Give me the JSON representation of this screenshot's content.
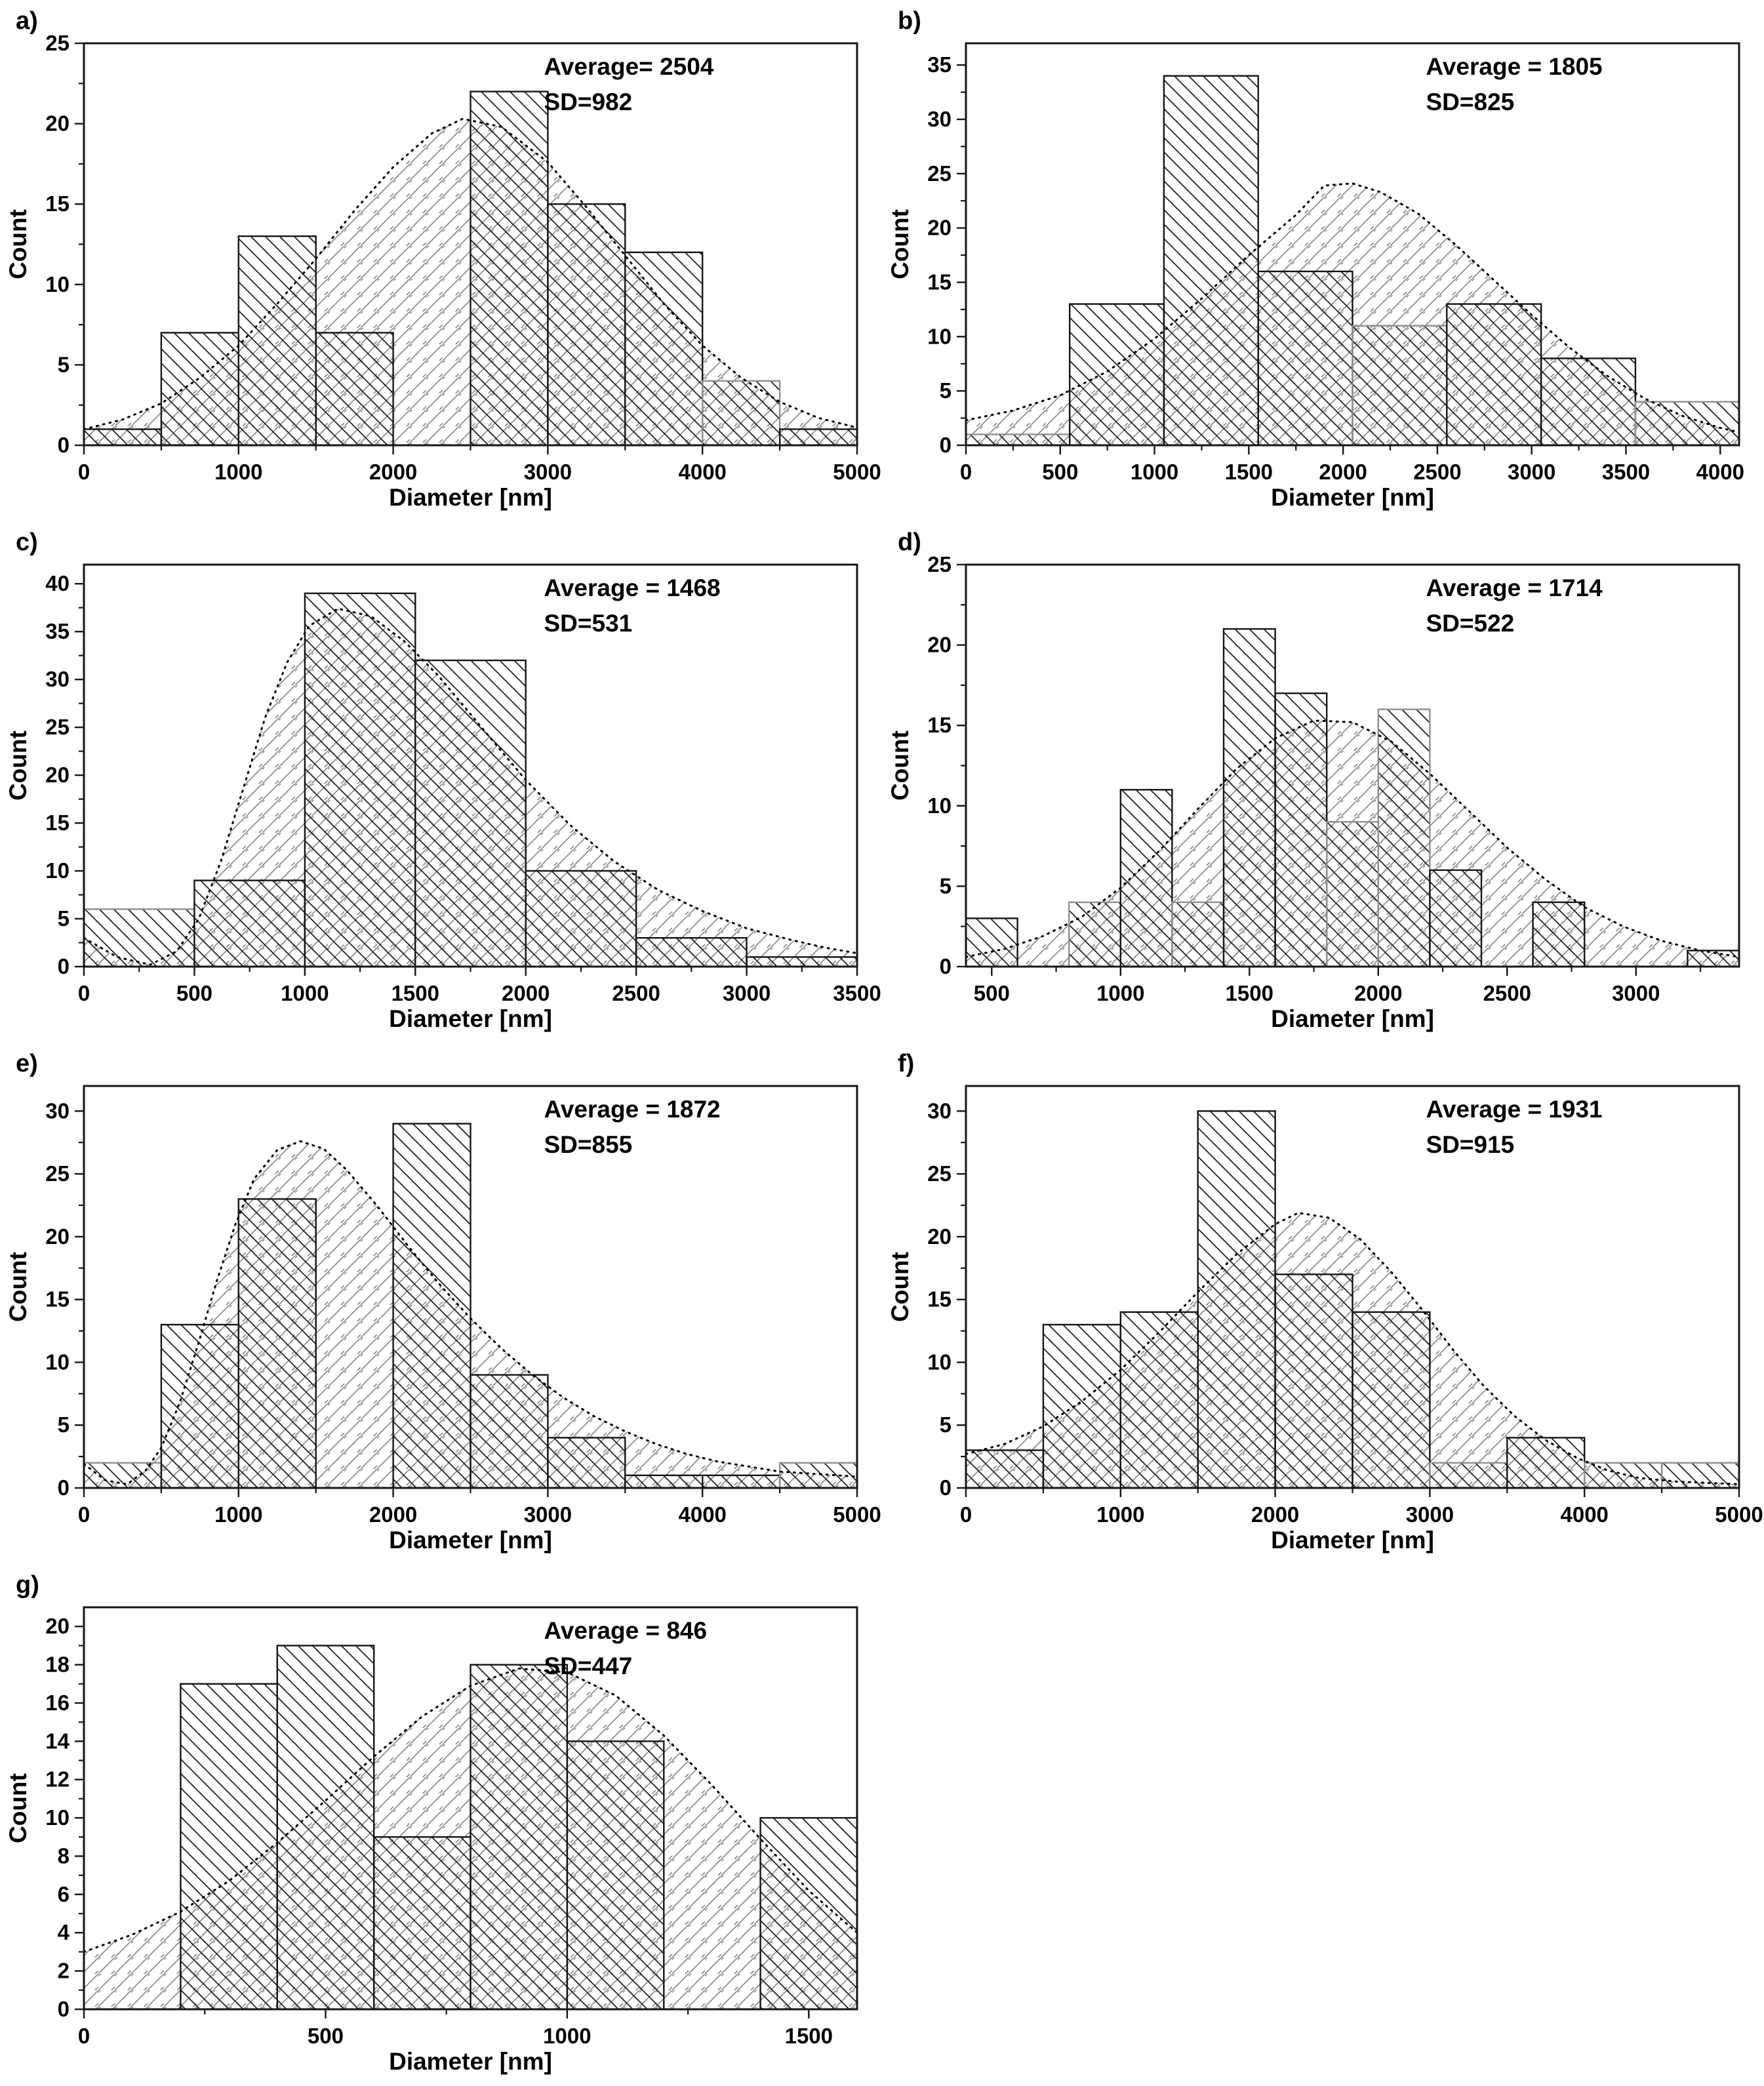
{
  "figure": {
    "background": "#ffffff",
    "ink_color": "#141414",
    "muted_color": "#8f8f8f",
    "panel_count": 7
  },
  "chart_data": {
    "type": "bar",
    "subtype": "histogram-with-fit-curve",
    "panels": [
      {
        "id": "a",
        "letter": "a)",
        "stats": {
          "line1": "Average= 2504",
          "line2": "SD=982"
        },
        "xlabel": "Diameter [nm]",
        "ylabel": "Count",
        "x_min": 0,
        "x_max": 5000,
        "x_ticks": [
          0,
          1000,
          2000,
          3000,
          4000,
          5000
        ],
        "y_frame": 25,
        "y_ticks": [
          0,
          5,
          10,
          15,
          20,
          25
        ],
        "bin_width": 500,
        "bins": [
          [
            0,
            500,
            1,
            0
          ],
          [
            500,
            1000,
            7,
            0
          ],
          [
            1000,
            1500,
            13,
            0
          ],
          [
            1500,
            2000,
            7,
            0
          ],
          [
            2500,
            3000,
            22,
            0
          ],
          [
            3000,
            3500,
            15,
            0
          ],
          [
            3500,
            4000,
            12,
            0
          ],
          [
            4000,
            4500,
            4,
            1
          ],
          [
            4500,
            5000,
            1,
            0
          ]
        ],
        "curve": [
          [
            0,
            1.0
          ],
          [
            250,
            1.6
          ],
          [
            500,
            2.6
          ],
          [
            750,
            4.2
          ],
          [
            1000,
            6.2
          ],
          [
            1250,
            8.8
          ],
          [
            1500,
            11.6
          ],
          [
            1750,
            14.6
          ],
          [
            2000,
            17.3
          ],
          [
            2250,
            19.4
          ],
          [
            2450,
            20.3
          ],
          [
            2700,
            19.8
          ],
          [
            3000,
            17.6
          ],
          [
            3250,
            14.8
          ],
          [
            3500,
            11.8
          ],
          [
            3750,
            8.8
          ],
          [
            4000,
            6.2
          ],
          [
            4250,
            4.2
          ],
          [
            4500,
            2.7
          ],
          [
            4750,
            1.7
          ],
          [
            5000,
            1.1
          ]
        ]
      },
      {
        "id": "b",
        "letter": "b)",
        "stats": {
          "line1": "Average = 1805",
          "line2": "SD=825"
        },
        "xlabel": "Diameter [nm]",
        "ylabel": "Count",
        "x_min": 0,
        "x_max": 4100,
        "x_ticks": [
          0,
          500,
          1000,
          1500,
          2000,
          2500,
          3000,
          3500,
          4000
        ],
        "y_frame": 37,
        "y_ticks": [
          0,
          5,
          10,
          15,
          20,
          25,
          30,
          35
        ],
        "bin_width": 500,
        "bins": [
          [
            0,
            550,
            1,
            1
          ],
          [
            550,
            1050,
            13,
            0
          ],
          [
            1050,
            1550,
            34,
            0
          ],
          [
            1550,
            2050,
            16,
            0
          ],
          [
            2050,
            2550,
            11,
            1
          ],
          [
            2550,
            3050,
            13,
            0
          ],
          [
            3050,
            3550,
            8,
            0
          ],
          [
            3550,
            4100,
            4,
            1
          ]
        ],
        "curve": [
          [
            0,
            2.3
          ],
          [
            250,
            3.2
          ],
          [
            500,
            4.6
          ],
          [
            750,
            6.8
          ],
          [
            1000,
            9.8
          ],
          [
            1250,
            13.5
          ],
          [
            1500,
            17.5
          ],
          [
            1750,
            21.2
          ],
          [
            1900,
            23.9
          ],
          [
            2050,
            24.1
          ],
          [
            2200,
            23.3
          ],
          [
            2400,
            21.3
          ],
          [
            2600,
            18.4
          ],
          [
            2800,
            15.2
          ],
          [
            3000,
            12.0
          ],
          [
            3200,
            9.0
          ],
          [
            3400,
            6.4
          ],
          [
            3600,
            4.3
          ],
          [
            3800,
            2.7
          ],
          [
            4000,
            1.6
          ],
          [
            4100,
            1.2
          ]
        ]
      },
      {
        "id": "c",
        "letter": "c)",
        "stats": {
          "line1": "Average = 1468",
          "line2": "SD=531"
        },
        "xlabel": "Diameter [nm]",
        "ylabel": "Count",
        "x_min": 0,
        "x_max": 3500,
        "x_ticks": [
          0,
          500,
          1000,
          1500,
          2000,
          2500,
          3000,
          3500
        ],
        "y_frame": 42,
        "y_ticks": [
          0,
          5,
          10,
          15,
          20,
          25,
          30,
          35,
          40
        ],
        "bin_width": 500,
        "bins": [
          [
            0,
            500,
            6,
            1
          ],
          [
            500,
            1000,
            9,
            0
          ],
          [
            1000,
            1500,
            39,
            0
          ],
          [
            1500,
            2000,
            32,
            0
          ],
          [
            2000,
            2500,
            10,
            0
          ],
          [
            2500,
            3000,
            3,
            0
          ],
          [
            3000,
            3500,
            1,
            0
          ]
        ],
        "curve": [
          [
            0,
            3.0
          ],
          [
            150,
            1.0
          ],
          [
            300,
            0.2
          ],
          [
            420,
            1.6
          ],
          [
            520,
            5.0
          ],
          [
            620,
            11.0
          ],
          [
            720,
            18.5
          ],
          [
            820,
            26.0
          ],
          [
            920,
            31.8
          ],
          [
            1020,
            35.6
          ],
          [
            1150,
            37.4
          ],
          [
            1300,
            36.6
          ],
          [
            1450,
            34.0
          ],
          [
            1600,
            30.5
          ],
          [
            1800,
            25.0
          ],
          [
            2000,
            19.5
          ],
          [
            2200,
            14.8
          ],
          [
            2400,
            11.0
          ],
          [
            2600,
            8.0
          ],
          [
            2800,
            5.8
          ],
          [
            3000,
            4.0
          ],
          [
            3200,
            2.8
          ],
          [
            3350,
            2.0
          ],
          [
            3500,
            1.4
          ]
        ]
      },
      {
        "id": "d",
        "letter": "d)",
        "stats": {
          "line1": "Average = 1714",
          "line2": "SD=522"
        },
        "xlabel": "Diameter [nm]",
        "ylabel": "Count",
        "x_min": 400,
        "x_max": 3400,
        "x_ticks": [
          500,
          1000,
          1500,
          2000,
          2500,
          3000
        ],
        "y_frame": 25,
        "y_ticks": [
          0,
          5,
          10,
          15,
          20,
          25
        ],
        "bin_width": 200,
        "bins": [
          [
            400,
            600,
            3,
            0
          ],
          [
            800,
            1000,
            4,
            1
          ],
          [
            1000,
            1200,
            11,
            0
          ],
          [
            1200,
            1400,
            4,
            1
          ],
          [
            1400,
            1600,
            21,
            0
          ],
          [
            1600,
            1800,
            17,
            0
          ],
          [
            1800,
            2000,
            9,
            1
          ],
          [
            2000,
            2200,
            16,
            1
          ],
          [
            2200,
            2400,
            6,
            0
          ],
          [
            2600,
            2800,
            4,
            0
          ],
          [
            3200,
            3400,
            1,
            0
          ]
        ],
        "curve": [
          [
            400,
            0.6
          ],
          [
            550,
            1.1
          ],
          [
            700,
            1.9
          ],
          [
            850,
            3.1
          ],
          [
            1000,
            4.9
          ],
          [
            1150,
            7.2
          ],
          [
            1300,
            9.8
          ],
          [
            1450,
            12.3
          ],
          [
            1600,
            14.2
          ],
          [
            1750,
            15.3
          ],
          [
            1900,
            15.2
          ],
          [
            2050,
            14.0
          ],
          [
            2200,
            12.0
          ],
          [
            2350,
            9.7
          ],
          [
            2500,
            7.4
          ],
          [
            2650,
            5.4
          ],
          [
            2800,
            3.7
          ],
          [
            2950,
            2.5
          ],
          [
            3100,
            1.6
          ],
          [
            3250,
            1.0
          ],
          [
            3400,
            0.6
          ]
        ]
      },
      {
        "id": "e",
        "letter": "e)",
        "stats": {
          "line1": "Average = 1872",
          "line2": "SD=855"
        },
        "xlabel": "Diameter [nm]",
        "ylabel": "Count",
        "x_min": 0,
        "x_max": 5000,
        "x_ticks": [
          0,
          1000,
          2000,
          3000,
          4000,
          5000
        ],
        "y_frame": 32,
        "y_ticks": [
          0,
          5,
          10,
          15,
          20,
          25,
          30
        ],
        "bin_width": 500,
        "bins": [
          [
            0,
            500,
            2,
            1
          ],
          [
            500,
            1000,
            13,
            0
          ],
          [
            1000,
            1500,
            23,
            0
          ],
          [
            2000,
            2500,
            29,
            0
          ],
          [
            2500,
            3000,
            9,
            0
          ],
          [
            3000,
            3500,
            4,
            0
          ],
          [
            3500,
            4000,
            1,
            0
          ],
          [
            4000,
            4500,
            1,
            0
          ],
          [
            4500,
            5000,
            2,
            1
          ]
        ],
        "curve": [
          [
            0,
            1.9
          ],
          [
            140,
            0.6
          ],
          [
            280,
            0.3
          ],
          [
            400,
            1.4
          ],
          [
            500,
            3.2
          ],
          [
            620,
            6.8
          ],
          [
            740,
            11.5
          ],
          [
            860,
            16.5
          ],
          [
            980,
            21.0
          ],
          [
            1100,
            24.6
          ],
          [
            1250,
            26.9
          ],
          [
            1400,
            27.6
          ],
          [
            1550,
            27.0
          ],
          [
            1700,
            25.3
          ],
          [
            1900,
            22.4
          ],
          [
            2100,
            19.2
          ],
          [
            2300,
            16.2
          ],
          [
            2500,
            13.5
          ],
          [
            2700,
            11.1
          ],
          [
            2900,
            9.0
          ],
          [
            3100,
            7.2
          ],
          [
            3300,
            5.7
          ],
          [
            3500,
            4.5
          ],
          [
            3700,
            3.5
          ],
          [
            3900,
            2.7
          ],
          [
            4100,
            2.1
          ],
          [
            4300,
            1.7
          ],
          [
            4500,
            1.3
          ],
          [
            4750,
            1.1
          ],
          [
            5000,
            0.9
          ]
        ]
      },
      {
        "id": "f",
        "letter": "f)",
        "stats": {
          "line1": "Average = 1931",
          "line2": "SD=915"
        },
        "xlabel": "Diameter [nm]",
        "ylabel": "Count",
        "x_min": 0,
        "x_max": 5000,
        "x_ticks": [
          0,
          1000,
          2000,
          3000,
          4000,
          5000
        ],
        "y_frame": 32,
        "y_ticks": [
          0,
          5,
          10,
          15,
          20,
          25,
          30
        ],
        "bin_width": 500,
        "bins": [
          [
            0,
            500,
            3,
            0
          ],
          [
            500,
            1000,
            13,
            0
          ],
          [
            1000,
            1500,
            14,
            0
          ],
          [
            1500,
            2000,
            30,
            0
          ],
          [
            2000,
            2500,
            17,
            0
          ],
          [
            2500,
            3000,
            14,
            0
          ],
          [
            3000,
            3500,
            2,
            1
          ],
          [
            3500,
            4000,
            4,
            0
          ],
          [
            4000,
            4500,
            2,
            1
          ],
          [
            4500,
            5000,
            2,
            1
          ]
        ],
        "curve": [
          [
            0,
            2.7
          ],
          [
            250,
            3.5
          ],
          [
            500,
            4.9
          ],
          [
            750,
            6.9
          ],
          [
            1000,
            9.4
          ],
          [
            1250,
            12.4
          ],
          [
            1500,
            15.6
          ],
          [
            1750,
            18.6
          ],
          [
            2000,
            21.0
          ],
          [
            2150,
            21.9
          ],
          [
            2350,
            21.5
          ],
          [
            2550,
            19.8
          ],
          [
            2750,
            17.2
          ],
          [
            2950,
            14.2
          ],
          [
            3150,
            11.0
          ],
          [
            3350,
            8.1
          ],
          [
            3550,
            5.7
          ],
          [
            3750,
            3.8
          ],
          [
            3950,
            2.4
          ],
          [
            4150,
            1.4
          ],
          [
            4350,
            0.8
          ],
          [
            4600,
            0.5
          ],
          [
            5000,
            0.3
          ]
        ]
      },
      {
        "id": "g",
        "letter": "g)",
        "stats": {
          "line1": "Average = 846",
          "line2": "SD=447"
        },
        "xlabel": "Diameter [nm]",
        "ylabel": "Count",
        "x_min": 0,
        "x_max": 1600,
        "x_ticks": [
          0,
          500,
          1000,
          1500
        ],
        "y_frame": 21,
        "y_ticks": [
          0,
          2,
          4,
          6,
          8,
          10,
          12,
          14,
          16,
          18,
          20
        ],
        "bin_width": 200,
        "bins": [
          [
            200,
            400,
            17,
            0
          ],
          [
            400,
            600,
            19,
            0
          ],
          [
            600,
            800,
            9,
            0
          ],
          [
            800,
            1000,
            18,
            0
          ],
          [
            1000,
            1200,
            14,
            0
          ],
          [
            1400,
            1600,
            10,
            0
          ]
        ],
        "curve": [
          [
            0,
            3.0
          ],
          [
            100,
            3.9
          ],
          [
            200,
            5.1
          ],
          [
            300,
            6.7
          ],
          [
            400,
            8.7
          ],
          [
            500,
            10.9
          ],
          [
            600,
            13.2
          ],
          [
            700,
            15.3
          ],
          [
            800,
            16.9
          ],
          [
            900,
            17.8
          ],
          [
            1000,
            17.6
          ],
          [
            1100,
            16.4
          ],
          [
            1200,
            14.3
          ],
          [
            1300,
            11.7
          ],
          [
            1400,
            8.9
          ],
          [
            1500,
            6.2
          ],
          [
            1600,
            4.0
          ]
        ]
      }
    ]
  }
}
